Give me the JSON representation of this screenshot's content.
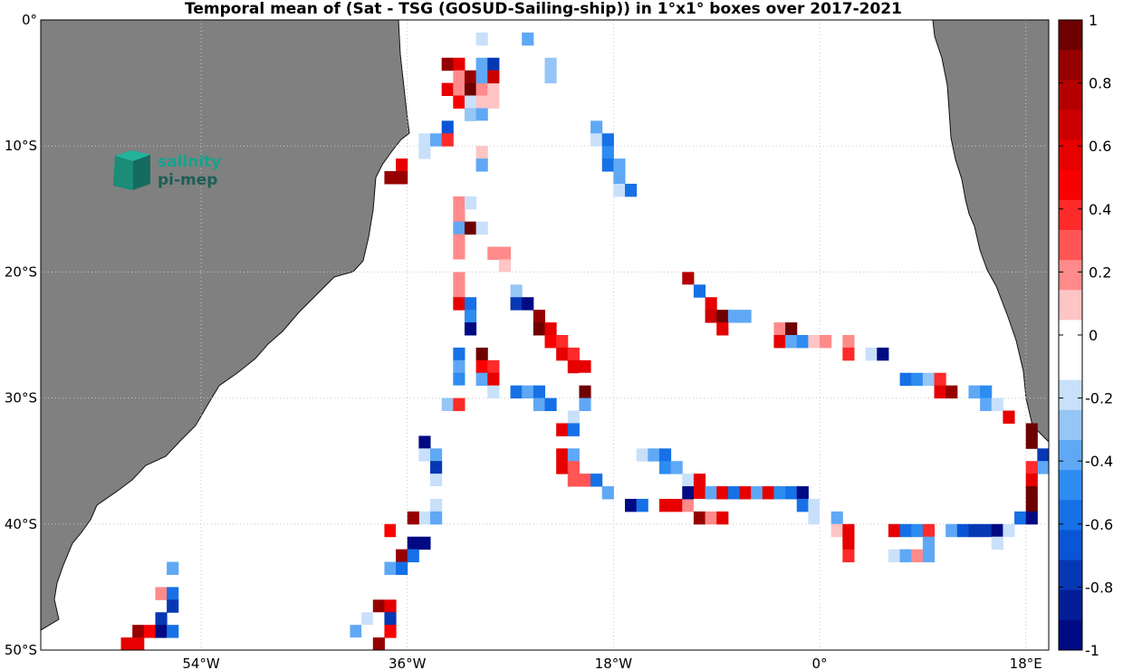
{
  "title": "Temporal mean of (Sat - TSG (GOSUD-Sailing-ship)) in 1°x1° boxes over 2017-2021",
  "logo": {
    "line1": "salinity",
    "line2": "pi-mep"
  },
  "map": {
    "lon_range": [
      -68,
      20
    ],
    "lat_range": [
      -50,
      0
    ],
    "x_ticks": [
      {
        "lon": -54,
        "label": "54°W"
      },
      {
        "lon": -36,
        "label": "36°W"
      },
      {
        "lon": -18,
        "label": "18°W"
      },
      {
        "lon": 0,
        "label": "0°"
      },
      {
        "lon": 18,
        "label": "18°E"
      }
    ],
    "y_ticks": [
      {
        "lat": 0,
        "label": "0°"
      },
      {
        "lat": -10,
        "label": "10°S"
      },
      {
        "lat": -20,
        "label": "20°S"
      },
      {
        "lat": -30,
        "label": "30°S"
      },
      {
        "lat": -40,
        "label": "40°S"
      },
      {
        "lat": -50,
        "label": "50°S"
      }
    ],
    "land_color": "#808080",
    "grid": true
  },
  "colorbar": {
    "min": -1,
    "max": 1,
    "tick_labels": [
      "1",
      "0.8",
      "0.6",
      "0.4",
      "0.2",
      "0",
      "-0.2",
      "-0.4",
      "-0.6",
      "-0.8",
      "-1"
    ],
    "colors_top_to_bottom": [
      "#6e0000",
      "#960000",
      "#b40000",
      "#cc0000",
      "#e60000",
      "#fa0000",
      "#ff2a2a",
      "#ff5555",
      "#ff8a8a",
      "#ffc4c4",
      "#ffffff",
      "#ffffff",
      "#c8e0fa",
      "#96c6f5",
      "#5fa8f5",
      "#2d8cf0",
      "#1670e6",
      "#0a55d6",
      "#0738b4",
      "#031e96",
      "#000a82"
    ]
  },
  "chart_data": {
    "type": "heatmap",
    "title": "Temporal mean of (Sat - TSG (GOSUD-Sailing-ship)) in 1°x1° boxes over 2017-2021",
    "xlabel": "",
    "ylabel": "",
    "xlim": [
      -68,
      20
    ],
    "ylim": [
      -50,
      0
    ],
    "value_range": [
      -1,
      1
    ],
    "cells": [
      [
        -33,
        -4,
        0.9
      ],
      [
        -32,
        -4,
        0.6
      ],
      [
        -32,
        -5,
        0.2
      ],
      [
        -31,
        -5,
        0.9
      ],
      [
        -33,
        -6,
        0.6
      ],
      [
        -32,
        -6,
        0.2
      ],
      [
        -31,
        -6,
        1.0
      ],
      [
        -30,
        -6,
        0.2
      ],
      [
        -29,
        -6,
        0.1
      ],
      [
        -32,
        -7,
        0.5
      ],
      [
        -31,
        -7,
        -0.2
      ],
      [
        -30,
        -7,
        0.1
      ],
      [
        -29,
        -7,
        0.1
      ],
      [
        -31,
        -8,
        -0.3
      ],
      [
        -30,
        -8,
        -0.4
      ],
      [
        -33,
        -9,
        -0.7
      ],
      [
        -30,
        -9,
        -0.1
      ],
      [
        -35,
        -10,
        -0.2
      ],
      [
        -34,
        -10,
        -0.4
      ],
      [
        -33,
        -10,
        0.4
      ],
      [
        -35,
        -11,
        -0.2
      ],
      [
        -30,
        -11,
        0.1
      ],
      [
        -30,
        -12,
        -0.4
      ],
      [
        -30,
        -2,
        -0.2
      ],
      [
        -29,
        -3,
        -0.1
      ],
      [
        -30,
        -4,
        -0.4
      ],
      [
        -29,
        -4,
        -0.8
      ],
      [
        -30,
        -5,
        -0.4
      ],
      [
        -29,
        -5,
        0.7
      ],
      [
        -26,
        -2,
        -0.4
      ],
      [
        -24,
        -4,
        -0.3
      ],
      [
        -24,
        -5,
        -0.3
      ],
      [
        -20,
        -9,
        -0.4
      ],
      [
        -20,
        -10,
        -0.2
      ],
      [
        -19,
        -10,
        -0.6
      ],
      [
        -19,
        -11,
        -0.5
      ],
      [
        -19,
        -12,
        -0.6
      ],
      [
        -18,
        -12,
        -0.4
      ],
      [
        -18,
        -13,
        -0.4
      ],
      [
        -18,
        -14,
        -0.2
      ],
      [
        -17,
        -14,
        -0.6
      ],
      [
        -37,
        -12,
        0.6
      ],
      [
        -38,
        -13,
        0.9
      ],
      [
        -37,
        -13,
        0.9
      ],
      [
        -32,
        -15,
        0.2
      ],
      [
        -31,
        -15,
        -0.2
      ],
      [
        -32,
        -16,
        0.2
      ],
      [
        -32,
        -17,
        -0.4
      ],
      [
        -31,
        -17,
        1.0
      ],
      [
        -30,
        -17,
        -0.2
      ],
      [
        -32,
        -18,
        0.2
      ],
      [
        -32,
        -19,
        0.2
      ],
      [
        -32,
        -20,
        -0.1
      ],
      [
        -32,
        -21,
        0.2
      ],
      [
        -32,
        -22,
        0.2
      ],
      [
        -32,
        -23,
        0.6
      ],
      [
        -31,
        -23,
        -0.6
      ],
      [
        -31,
        -24,
        -0.5
      ],
      [
        -31,
        -25,
        -1.0
      ],
      [
        -29,
        -19,
        0.2
      ],
      [
        -28,
        -19,
        0.2
      ],
      [
        -28,
        -20,
        0.1
      ],
      [
        -28,
        -21,
        -0.1
      ],
      [
        -27,
        -22,
        -0.3
      ],
      [
        -27,
        -23,
        -0.8
      ],
      [
        -26,
        -23,
        -1.0
      ],
      [
        -25,
        -24,
        0.9
      ],
      [
        -25,
        -25,
        1.0
      ],
      [
        -24,
        -25,
        0.6
      ],
      [
        -24,
        -26,
        0.5
      ],
      [
        -23,
        -26,
        0.4
      ],
      [
        -23,
        -27,
        0.6
      ],
      [
        -22,
        -27,
        0.4
      ],
      [
        -22,
        -28,
        0.6
      ],
      [
        -21,
        -28,
        0.6
      ],
      [
        -21,
        -29,
        -0.1
      ],
      [
        -21,
        -30,
        1.0
      ],
      [
        -21,
        -31,
        -0.4
      ],
      [
        -22,
        -32,
        -0.2
      ],
      [
        -23,
        -33,
        0.6
      ],
      [
        -22,
        -33,
        -0.6
      ],
      [
        -32,
        -27,
        -0.6
      ],
      [
        -30,
        -27,
        1.0
      ],
      [
        -32,
        -28,
        -0.4
      ],
      [
        -30,
        -28,
        0.5
      ],
      [
        -29,
        -28,
        0.4
      ],
      [
        -32,
        -29,
        -0.5
      ],
      [
        -30,
        -29,
        -0.4
      ],
      [
        -29,
        -29,
        0.6
      ],
      [
        -32,
        -30,
        -0.1
      ],
      [
        -29,
        -30,
        -0.2
      ],
      [
        -27,
        -30,
        -0.6
      ],
      [
        -26,
        -30,
        -0.4
      ],
      [
        -25,
        -30,
        -0.6
      ],
      [
        -33,
        -31,
        -0.3
      ],
      [
        -32,
        -31,
        0.4
      ],
      [
        -25,
        -31,
        -0.4
      ],
      [
        -24,
        -31,
        -0.6
      ],
      [
        -35,
        -34,
        -1.0
      ],
      [
        -35,
        -35,
        -0.2
      ],
      [
        -34,
        -35,
        -0.4
      ],
      [
        -34,
        -36,
        -0.8
      ],
      [
        -34,
        -37,
        -0.2
      ],
      [
        -34,
        -38,
        -0.1
      ],
      [
        -34,
        -39,
        -0.2
      ],
      [
        -35,
        -40,
        -0.2
      ],
      [
        -34,
        -40,
        -0.4
      ],
      [
        -36,
        -40,
        0.9
      ],
      [
        -38,
        -41,
        0.5
      ],
      [
        -37,
        -41,
        -0.1
      ],
      [
        -36,
        -42,
        -1.0
      ],
      [
        -35,
        -42,
        -1.0
      ],
      [
        -37,
        -43,
        0.9
      ],
      [
        -36,
        -43,
        -0.6
      ],
      [
        -38,
        -44,
        -0.4
      ],
      [
        -37,
        -44,
        -0.6
      ],
      [
        -39,
        -47,
        0.9
      ],
      [
        -38,
        -47,
        0.6
      ],
      [
        -40,
        -48,
        -0.2
      ],
      [
        -39,
        -48,
        0.0
      ],
      [
        -38,
        -48,
        -0.8
      ],
      [
        -41,
        -49,
        -0.4
      ],
      [
        -40,
        -49,
        -0.1
      ],
      [
        -38,
        -49,
        0.5
      ],
      [
        -42,
        -50,
        -0.1
      ],
      [
        -41,
        -50,
        -0.1
      ],
      [
        -40,
        -50,
        -0.1
      ],
      [
        -39,
        -50,
        0.9
      ],
      [
        -46,
        -51,
        0.6
      ],
      [
        -45,
        -51,
        0.6
      ],
      [
        -44,
        -51,
        1.0
      ],
      [
        -43,
        -51,
        -0.4
      ],
      [
        -57,
        -44,
        -0.4
      ],
      [
        -58,
        -46,
        0.2
      ],
      [
        -57,
        -46,
        -0.6
      ],
      [
        -57,
        -47,
        -0.8
      ],
      [
        -58,
        -48,
        -0.8
      ],
      [
        -60,
        -49,
        0.9
      ],
      [
        -59,
        -49,
        0.5
      ],
      [
        -58,
        -49,
        -1.0
      ],
      [
        -57,
        -49,
        -0.6
      ],
      [
        -61,
        -50,
        0.6
      ],
      [
        -60,
        -50,
        0.6
      ],
      [
        -61,
        -51,
        -0.1
      ],
      [
        -23,
        -35,
        0.6
      ],
      [
        -22,
        -35,
        -0.4
      ],
      [
        -23,
        -36,
        0.6
      ],
      [
        -22,
        -36,
        0.3
      ],
      [
        -22,
        -37,
        0.3
      ],
      [
        -21,
        -37,
        0.3
      ],
      [
        -20,
        -37,
        -0.6
      ],
      [
        -19,
        -38,
        -0.4
      ],
      [
        -16,
        -35,
        -0.2
      ],
      [
        -15,
        -35,
        -0.4
      ],
      [
        -14,
        -35,
        -0.6
      ],
      [
        -14,
        -36,
        -0.5
      ],
      [
        -13,
        -36,
        -0.4
      ],
      [
        -17,
        -39,
        -1.0
      ],
      [
        -16,
        -39,
        -0.6
      ],
      [
        -14,
        -39,
        0.6
      ],
      [
        -13,
        -39,
        0.6
      ],
      [
        -12,
        -39,
        0.2
      ],
      [
        -12,
        -37,
        -0.2
      ],
      [
        -11,
        -37,
        0.6
      ],
      [
        -12,
        -38,
        -1.0
      ],
      [
        -11,
        -38,
        0.6
      ],
      [
        -10,
        -38,
        -0.4
      ],
      [
        -9,
        -38,
        0.6
      ],
      [
        -8,
        -38,
        -0.6
      ],
      [
        -7,
        -38,
        0.6
      ],
      [
        -6,
        -38,
        -0.4
      ],
      [
        -5,
        -38,
        0.6
      ],
      [
        -4,
        -38,
        -0.5
      ],
      [
        -3,
        -38,
        -0.6
      ],
      [
        -2,
        -38,
        -1.0
      ],
      [
        -11,
        -39,
        -0.1
      ],
      [
        -11,
        -40,
        0.9
      ],
      [
        -10,
        -40,
        0.2
      ],
      [
        -9,
        -40,
        0.6
      ],
      [
        -2,
        -39,
        -0.6
      ],
      [
        -1,
        -39,
        -0.2
      ],
      [
        0,
        -39,
        -0.1
      ],
      [
        1,
        -39,
        -0.1
      ],
      [
        -1,
        -40,
        -0.2
      ],
      [
        0,
        -40,
        -0.1
      ],
      [
        1,
        -40,
        -0.4
      ],
      [
        1,
        -41,
        0.1
      ],
      [
        2,
        -41,
        0.6
      ],
      [
        2,
        -42,
        0.6
      ],
      [
        2,
        -43,
        0.4
      ],
      [
        -12,
        -21,
        0.8
      ],
      [
        -12,
        -22,
        -0.1
      ],
      [
        -11,
        -22,
        -0.6
      ],
      [
        -10,
        -23,
        0.6
      ],
      [
        -10,
        -24,
        0.7
      ],
      [
        -9,
        -24,
        1.0
      ],
      [
        -8,
        -24,
        -0.4
      ],
      [
        -7,
        -24,
        -0.4
      ],
      [
        -9,
        -25,
        0.6
      ],
      [
        -4,
        -25,
        0.2
      ],
      [
        -3,
        -25,
        1.0
      ],
      [
        -4,
        -26,
        0.6
      ],
      [
        -3,
        -26,
        -0.4
      ],
      [
        -2,
        -26,
        -0.5
      ],
      [
        -1,
        -26,
        0.1
      ],
      [
        0,
        -26,
        0.2
      ],
      [
        2,
        -26,
        0.2
      ],
      [
        2,
        -27,
        0.4
      ],
      [
        4,
        -27,
        -0.2
      ],
      [
        5,
        -27,
        -1.0
      ],
      [
        7,
        -29,
        -0.6
      ],
      [
        8,
        -29,
        -0.5
      ],
      [
        9,
        -29,
        -0.3
      ],
      [
        10,
        -29,
        0.4
      ],
      [
        10,
        -30,
        0.6
      ],
      [
        11,
        -30,
        0.9
      ],
      [
        13,
        -30,
        -0.4
      ],
      [
        14,
        -30,
        -0.5
      ],
      [
        14,
        -31,
        -0.4
      ],
      [
        15,
        -31,
        -0.2
      ],
      [
        16,
        -32,
        0.6
      ],
      [
        18,
        -33,
        1.0
      ],
      [
        18,
        -34,
        1.0
      ],
      [
        19,
        -35,
        -0.8
      ],
      [
        19,
        -36,
        -0.4
      ],
      [
        18,
        -36,
        0.4
      ],
      [
        18,
        -37,
        0.6
      ],
      [
        18,
        -38,
        1.0
      ],
      [
        18,
        -39,
        1.0
      ],
      [
        17,
        -40,
        -0.6
      ],
      [
        18,
        -40,
        -1.0
      ],
      [
        20,
        -41,
        1.0
      ],
      [
        6,
        -41,
        0.6
      ],
      [
        7,
        -41,
        -0.6
      ],
      [
        8,
        -41,
        -0.5
      ],
      [
        9,
        -41,
        0.4
      ],
      [
        11,
        -41,
        -0.4
      ],
      [
        12,
        -41,
        -0.7
      ],
      [
        13,
        -41,
        -0.8
      ],
      [
        14,
        -41,
        -0.8
      ],
      [
        15,
        -41,
        -1.0
      ],
      [
        16,
        -41,
        -0.2
      ],
      [
        9,
        -42,
        -0.4
      ],
      [
        15,
        -42,
        -0.2
      ],
      [
        5,
        -43,
        -0.1
      ],
      [
        6,
        -43,
        -0.2
      ],
      [
        7,
        -43,
        -0.4
      ],
      [
        8,
        -43,
        0.2
      ],
      [
        9,
        -43,
        -0.4
      ]
    ]
  }
}
